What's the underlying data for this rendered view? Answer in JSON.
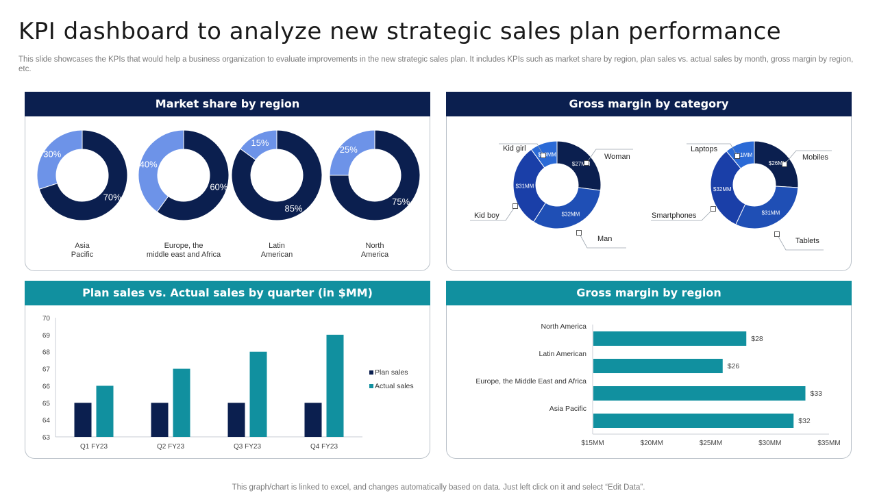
{
  "title": "KPI dashboard to analyze new strategic sales plan performance",
  "subtitle": "This slide showcases the KPIs that would help a business organization to evaluate improvements in the new strategic sales plan. It includes KPIs such as market share by region, plan sales vs. actual sales by month, gross margin by region, etc.",
  "footer": "This graph/chart is linked to excel,  and changes automatically based on data. Just left click on it and select “Edit Data”.",
  "colors": {
    "navy": "#0b1f4f",
    "teal": "#11909f",
    "light_blue": "#6d93e8",
    "blue_mid": "#1f4fb5",
    "blue_bright": "#2b6ad6"
  },
  "chart_data": [
    {
      "type": "pie",
      "title": "Market share by region",
      "charts": [
        {
          "name": "Asia\nPacific",
          "slices": [
            {
              "label": "30%",
              "value": 30
            },
            {
              "label": "70%",
              "value": 70
            }
          ]
        },
        {
          "name": "Europe, the\nmiddle east and Africa",
          "slices": [
            {
              "label": "40%",
              "value": 40
            },
            {
              "label": "60%",
              "value": 60
            }
          ]
        },
        {
          "name": "Latin\nAmerican",
          "slices": [
            {
              "label": "15%",
              "value": 15
            },
            {
              "label": "85%",
              "value": 85
            }
          ]
        },
        {
          "name": "North\nAmerica",
          "slices": [
            {
              "label": "25%",
              "value": 25
            },
            {
              "label": "75%",
              "value": 75
            }
          ]
        }
      ]
    },
    {
      "type": "pie",
      "title": "Gross margin by category",
      "charts": [
        {
          "slices": [
            {
              "name": "Woman",
              "label": "$27MM",
              "value": 27
            },
            {
              "name": "Man",
              "label": "$32MM",
              "value": 32
            },
            {
              "name": "Kid boy",
              "label": "$31MM",
              "value": 31
            },
            {
              "name": "Kid girl",
              "label": "$10MM",
              "value": 10
            }
          ]
        },
        {
          "slices": [
            {
              "name": "Mobiles",
              "label": "$26MM",
              "value": 26
            },
            {
              "name": "Tablets",
              "label": "$31MM",
              "value": 31
            },
            {
              "name": "Smartphones",
              "label": "$32MM",
              "value": 32
            },
            {
              "name": "Laptops",
              "label": "$11MM",
              "value": 11
            }
          ]
        }
      ]
    },
    {
      "type": "bar",
      "title": "Plan sales vs. Actual sales by quarter (in $MM)",
      "categories": [
        "Q1 FY23",
        "Q2 FY23",
        "Q3 FY23",
        "Q4 FY23"
      ],
      "series": [
        {
          "name": "Plan sales",
          "values": [
            65,
            65,
            65,
            65
          ]
        },
        {
          "name": "Actual sales",
          "values": [
            66,
            67,
            68,
            69
          ]
        }
      ],
      "ylim": [
        63,
        70
      ],
      "yticks": [
        "63",
        "64",
        "65",
        "66",
        "67",
        "68",
        "69",
        "70"
      ],
      "legend": "right"
    },
    {
      "type": "bar",
      "orientation": "horizontal",
      "title": "Gross margin by region",
      "categories": [
        "North America",
        "Latin American",
        "Europe, the Middle East and Africa",
        "Asia Pacific"
      ],
      "values": [
        28,
        26,
        33,
        32
      ],
      "value_labels": [
        "$28",
        "$26",
        "$33",
        "$32"
      ],
      "xlim": [
        15,
        35
      ],
      "xticks": [
        "$15MM",
        "$20MM",
        "$25MM",
        "$30MM",
        "$35MM"
      ]
    }
  ]
}
